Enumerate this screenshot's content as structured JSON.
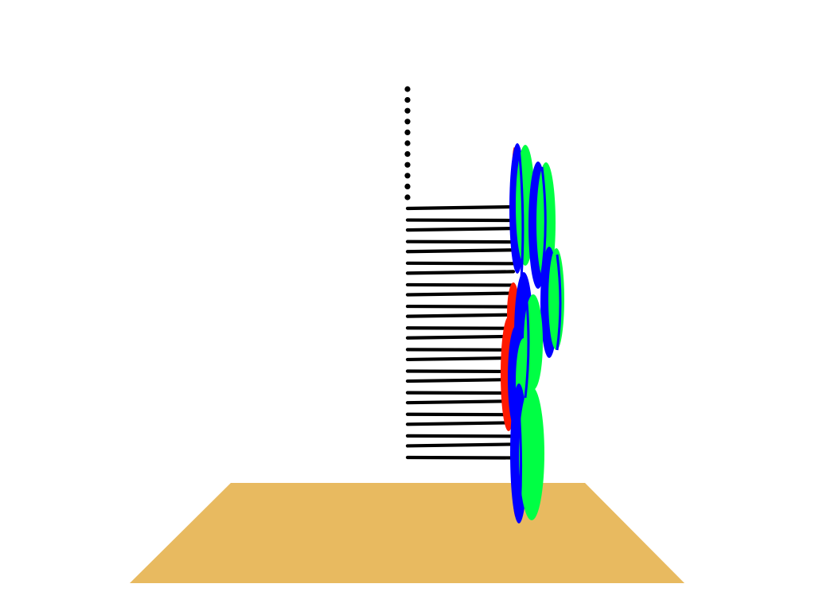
{
  "scene": {
    "background_color": "#ffffff",
    "floor": {
      "color": "#E8BA60"
    },
    "pole": {
      "color": "#000000",
      "dot_count": 11,
      "line_count": 24
    },
    "leaf_colors": {
      "front": "#00FF44",
      "edge": "#0000FF",
      "back": "#FF1A00"
    }
  }
}
